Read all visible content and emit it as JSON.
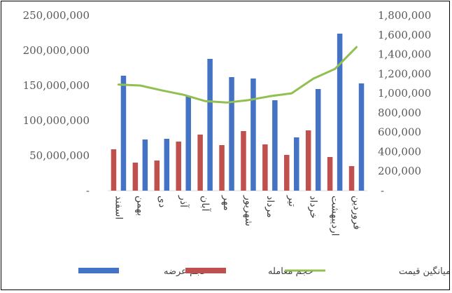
{
  "chart_data": {
    "type": "bar",
    "categories": [
      "اسفند",
      "بهمن",
      "دی",
      "آذر",
      "آبان",
      "مهر",
      "شهریور",
      "مرداد",
      "تیر",
      "خرداد",
      "اردیبهشت",
      "فروردین"
    ],
    "series": [
      {
        "name": "حجم عرضه",
        "type": "bar",
        "axis": "left",
        "color": "#4472C4",
        "values": [
          164000000,
          73000000,
          74000000,
          135000000,
          188000000,
          162000000,
          160000000,
          129000000,
          76000000,
          145000000,
          224000000,
          153000000
        ]
      },
      {
        "name": "حجم معامله",
        "type": "bar",
        "axis": "left",
        "color": "#C0504D",
        "values": [
          59000000,
          40000000,
          43000000,
          70000000,
          80000000,
          65000000,
          85000000,
          66000000,
          51000000,
          86000000,
          48000000,
          35000000
        ]
      },
      {
        "name": "میانگین قیمت",
        "type": "line",
        "axis": "right",
        "color": "#92C050",
        "values": [
          1090000,
          1080000,
          1030000,
          985000,
          920000,
          905000,
          930000,
          970000,
          1000000,
          1150000,
          1250000,
          1475000
        ]
      }
    ],
    "y_left": {
      "min": 0,
      "max": 250000000,
      "ticks": [
        0,
        50000000,
        100000000,
        150000000,
        200000000,
        250000000
      ],
      "tick_labels": [
        "-",
        "50,000,000",
        "100,000,000",
        "150,000,000",
        "200,000,000",
        "250,000,000"
      ]
    },
    "y_right": {
      "min": 0,
      "max": 1800000,
      "ticks": [
        0,
        200000,
        400000,
        600000,
        800000,
        1000000,
        1200000,
        1400000,
        1600000,
        1800000
      ],
      "tick_labels": [
        "-",
        "200,000",
        "400,000",
        "600,000",
        "800,000",
        "1,000,000",
        "1,200,000",
        "1,400,000",
        "1,600,000",
        "1,800,000"
      ]
    },
    "grid": false,
    "legend_position": "bottom",
    "title": "",
    "xlabel": "",
    "ylabel": ""
  }
}
